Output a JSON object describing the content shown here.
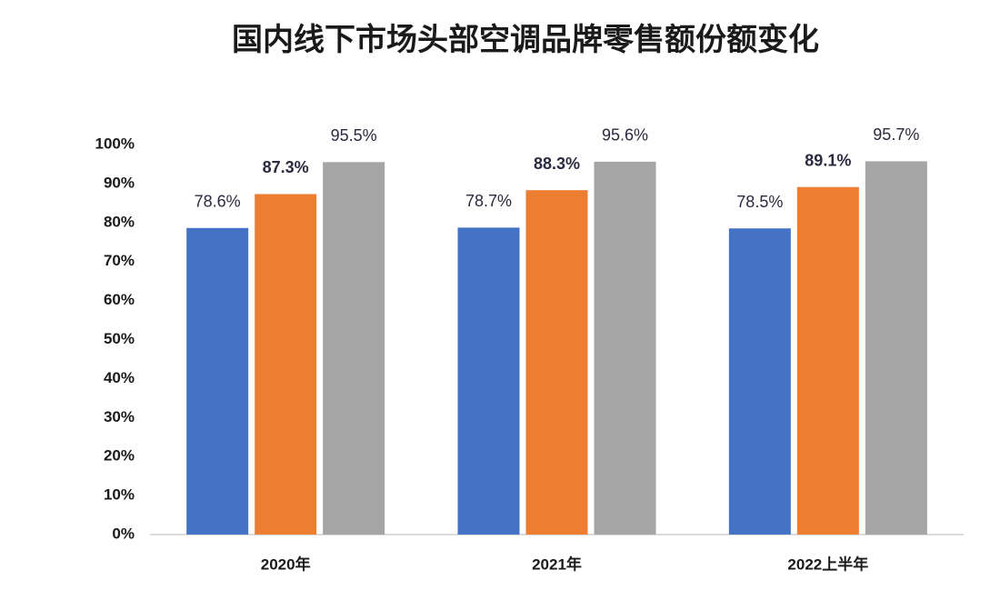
{
  "chart_data": {
    "type": "bar",
    "title": "国内线下市场头部空调品牌零售额份额变化",
    "categories": [
      "2020年",
      "2021年",
      "2022上半年"
    ],
    "series": [
      {
        "color": "#4472c4",
        "values": [
          78.6,
          78.7,
          78.5
        ],
        "value_labels": [
          "78.6%",
          "78.7%",
          "78.5%"
        ]
      },
      {
        "color": "#ed7d31",
        "values": [
          87.3,
          88.3,
          89.1
        ],
        "value_labels": [
          "87.3%",
          "88.3%",
          "89.1%"
        ]
      },
      {
        "color": "#a5a5a5",
        "values": [
          95.5,
          95.6,
          95.7
        ],
        "value_labels": [
          "95.5%",
          "95.6%",
          "95.7%"
        ]
      }
    ],
    "ylim": [
      0,
      100
    ],
    "yticks": [
      {
        "value": 0,
        "label": "0%"
      },
      {
        "value": 10,
        "label": "10%"
      },
      {
        "value": 20,
        "label": "20%"
      },
      {
        "value": 30,
        "label": "30%"
      },
      {
        "value": 40,
        "label": "40%"
      },
      {
        "value": 50,
        "label": "50%"
      },
      {
        "value": 60,
        "label": "60%"
      },
      {
        "value": 70,
        "label": "70%"
      },
      {
        "value": 80,
        "label": "80%"
      },
      {
        "value": 90,
        "label": "90%"
      },
      {
        "value": 100,
        "label": "100%"
      }
    ],
    "grid": false
  }
}
